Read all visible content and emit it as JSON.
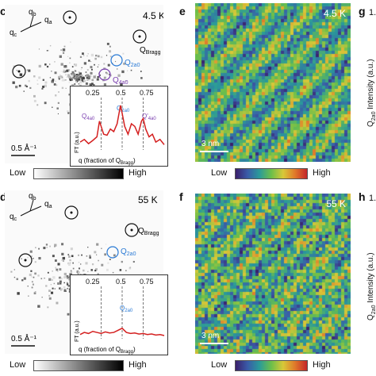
{
  "panels": {
    "c": {
      "letter": "c",
      "temperature": "4.5 K",
      "scale": "0.5 Å⁻¹",
      "q_bragg": "Q",
      "q_bragg_sub": "Bragg",
      "q_2a0": "Q",
      "q_2a0_sub": "2a0",
      "q_4a0": "Q",
      "q_4a0_sub": "4a0",
      "axis_qc": "q",
      "axis_qc_sub": "c",
      "axis_qb": "q",
      "axis_qb_sub": "b",
      "axis_qa": "q",
      "axis_qa_sub": "a"
    },
    "e": {
      "letter": "e",
      "temperature": "4.5 K",
      "scale": "3 nm"
    },
    "g": {
      "letter": "g",
      "value": "1.",
      "ylabel": "Q",
      "ylabel_sub": "2a0",
      "ylabel_rest": " Intensity (a.u.)"
    },
    "d": {
      "letter": "d",
      "temperature": "55 K",
      "scale": "0.5 Å⁻¹",
      "q_bragg": "Q",
      "q_bragg_sub": "Bragg",
      "q_2a0": "Q",
      "q_2a0_sub": "2a0",
      "axis_qc": "q",
      "axis_qc_sub": "c",
      "axis_qb": "q",
      "axis_qb_sub": "b",
      "axis_qa": "q",
      "axis_qa_sub": "a"
    },
    "f": {
      "letter": "f",
      "temperature": "55 K",
      "scale": "3 nm"
    },
    "h": {
      "letter": "h",
      "value": "1.",
      "ylabel": "Q",
      "ylabel_sub": "2a0",
      "ylabel_rest": " Intensity (a.u.)"
    }
  },
  "colorbars": {
    "low": "Low",
    "high": "High"
  },
  "insets": {
    "top": {
      "ticks": [
        "0.25",
        "0.5",
        "0.75"
      ],
      "ylabel": "FT (a.u.)",
      "xlabel": "q (fraction of Q",
      "xlabel_sub": "Bragg",
      "xlabel_end": ")",
      "ann_4a0": "Q",
      "ann_4a0_sub": "4a0",
      "ann_2a0": "Q",
      "ann_2a0_sub": "2a0",
      "ann_4a0p": "Q'",
      "ann_4a0p_sub": "4a0"
    },
    "bottom": {
      "ticks": [
        "0.25",
        "0.5",
        "0.75"
      ],
      "ylabel": "FT (a.u.)",
      "xlabel": "q (fraction of Q",
      "xlabel_sub": "Bragg",
      "xlabel_end": ")",
      "ann_2a0": "Q",
      "ann_2a0_sub": "2a0"
    }
  },
  "chart_data": [
    {
      "type": "line",
      "title": "",
      "xlabel": "q (fraction of QBragg)",
      "ylabel": "FT (a.u.)",
      "xlim": [
        0,
        1
      ],
      "x_ticks": [
        0.25,
        0.5,
        0.75
      ],
      "series": [
        {
          "color": "#d42020",
          "x": [
            0.0,
            0.05,
            0.1,
            0.15,
            0.2,
            0.23,
            0.25,
            0.28,
            0.32,
            0.36,
            0.4,
            0.44,
            0.48,
            0.5,
            0.53,
            0.57,
            0.61,
            0.65,
            0.69,
            0.73,
            0.75,
            0.78,
            0.82,
            0.86,
            0.9,
            0.95,
            1.0
          ],
          "y": [
            0.15,
            0.2,
            0.12,
            0.18,
            0.25,
            0.55,
            0.45,
            0.3,
            0.28,
            0.4,
            0.35,
            0.5,
            0.85,
            0.7,
            0.45,
            0.3,
            0.5,
            0.45,
            0.3,
            0.55,
            0.6,
            0.4,
            0.25,
            0.3,
            0.15,
            0.2,
            0.1
          ]
        }
      ]
    },
    {
      "type": "line",
      "title": "",
      "xlabel": "q (fraction of QBragg)",
      "ylabel": "FT (a.u.)",
      "xlim": [
        0,
        1
      ],
      "x_ticks": [
        0.25,
        0.5,
        0.75
      ],
      "series": [
        {
          "color": "#d42020",
          "x": [
            0.0,
            0.05,
            0.1,
            0.15,
            0.2,
            0.25,
            0.3,
            0.35,
            0.4,
            0.45,
            0.5,
            0.55,
            0.6,
            0.65,
            0.7,
            0.75,
            0.8,
            0.85,
            0.9,
            0.95,
            1.0
          ],
          "y": [
            0.08,
            0.12,
            0.1,
            0.14,
            0.12,
            0.1,
            0.13,
            0.11,
            0.12,
            0.16,
            0.2,
            0.12,
            0.1,
            0.11,
            0.09,
            0.1,
            0.08,
            0.09,
            0.07,
            0.08,
            0.06
          ]
        }
      ]
    }
  ]
}
